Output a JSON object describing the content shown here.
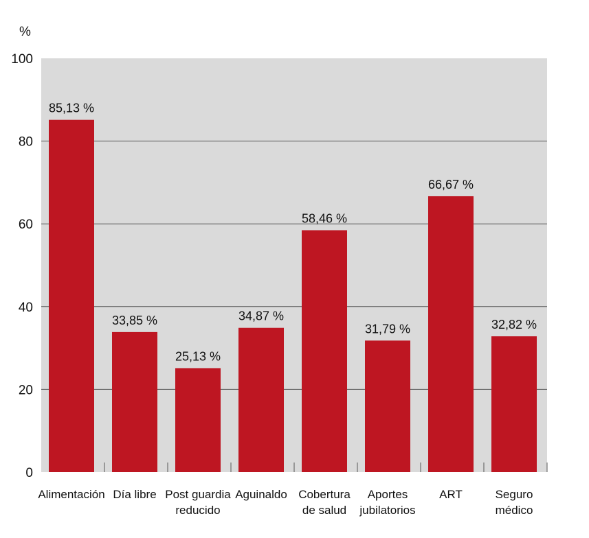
{
  "chart_data": {
    "type": "bar",
    "ylabel": "%",
    "ylim": [
      0,
      100
    ],
    "yticks": [
      0,
      20,
      40,
      60,
      80,
      100
    ],
    "grid": true,
    "categories": [
      [
        "Alimentación"
      ],
      [
        "Día libre"
      ],
      [
        "Post guardia",
        "reducido"
      ],
      [
        "Aguinaldo"
      ],
      [
        "Cobertura",
        "de salud"
      ],
      [
        "Aportes",
        "jubilatorios"
      ],
      [
        "ART"
      ],
      [
        "Seguro",
        "médico"
      ]
    ],
    "values": [
      85.13,
      33.85,
      25.13,
      34.87,
      58.46,
      31.79,
      66.67,
      32.82
    ],
    "data_labels": [
      "85,13 %",
      "33,85 %",
      "25,13 %",
      "34,87 %",
      "58,46 %",
      "31,79 %",
      "66,67 %",
      "32,82 %"
    ],
    "colors": {
      "bar": "#be1622",
      "plot_background": "#dadada",
      "gridline": "#555555"
    }
  }
}
